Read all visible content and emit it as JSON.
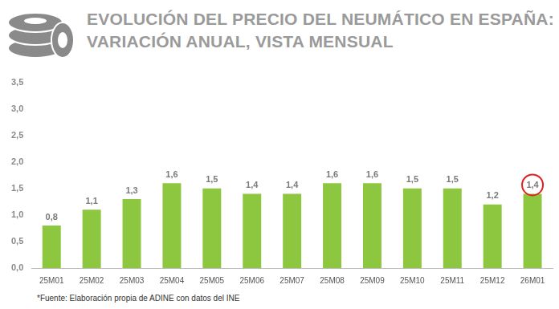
{
  "chart_data": {
    "type": "bar",
    "title": [
      "EVOLUCIÓN DEL PRECIO DEL NEUMÁTICO EN ESPAÑA:",
      "VARIACIÓN ANUAL, VISTA MENSUAL"
    ],
    "source": "*Fuente: Elaboración propia de ADINE con datos del INE",
    "categories": [
      "25M01",
      "25M02",
      "25M03",
      "25M04",
      "25M05",
      "25M06",
      "25M07",
      "25M08",
      "25M09",
      "25M10",
      "25M11",
      "25M12",
      "26M01"
    ],
    "values": [
      0.8,
      1.1,
      1.3,
      1.6,
      1.5,
      1.4,
      1.4,
      1.6,
      1.6,
      1.5,
      1.5,
      1.2,
      1.4
    ],
    "value_labels": [
      "0,8",
      "1,1",
      "1,3",
      "1,6",
      "1,5",
      "1,4",
      "1,4",
      "1,6",
      "1,6",
      "1,5",
      "1,5",
      "1,2",
      "1,4"
    ],
    "color": "#8dc63f",
    "ylim": [
      0,
      3.5
    ],
    "yticks": [
      {
        "value": 0,
        "label": "0,0"
      },
      {
        "value": 0.5,
        "label": "0,5"
      },
      {
        "value": 1,
        "label": "1,0"
      },
      {
        "value": 1.5,
        "label": "1,5"
      },
      {
        "value": 2,
        "label": "2,0"
      },
      {
        "value": 2.5,
        "label": "2,5"
      },
      {
        "value": 3,
        "label": "3,0"
      },
      {
        "value": 3.5,
        "label": "3,5"
      }
    ],
    "grid": false,
    "data_labels": true
  }
}
